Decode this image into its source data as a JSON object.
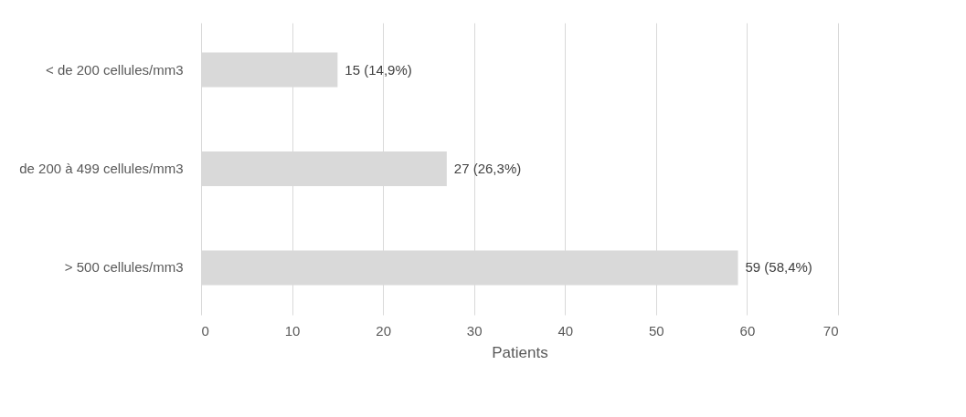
{
  "chart_data": {
    "type": "bar",
    "orientation": "horizontal",
    "categories": [
      "< de 200 cellules/mm3",
      "de 200 à 499 cellules/mm3",
      "> 500 cellules/mm3"
    ],
    "values": [
      15,
      27,
      59
    ],
    "value_labels": [
      "15 (14,9%)",
      "27 (26,3%)",
      "59 (58,4%)"
    ],
    "color": "#d9d9d9",
    "xlim": [
      0,
      70
    ],
    "xticks": [
      0,
      10,
      20,
      30,
      40,
      50,
      60,
      70
    ],
    "xlabel": "Patients",
    "grid": "x"
  }
}
